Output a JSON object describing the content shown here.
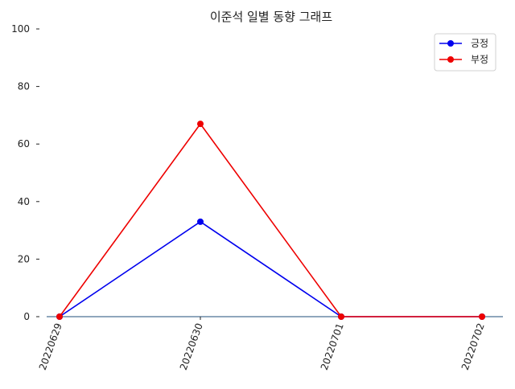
{
  "chart_data": {
    "type": "line",
    "title": "이준석 일별 동향 그래프",
    "xlabel": "",
    "ylabel": "",
    "categories": [
      "20220629",
      "20220630",
      "20220701",
      "20220702"
    ],
    "ylim": [
      0,
      100
    ],
    "yticks": [
      0,
      20,
      40,
      60,
      80,
      100
    ],
    "grid": false,
    "legend_position": "top-right",
    "series": [
      {
        "name": "긍정",
        "values": [
          0,
          33,
          0,
          0
        ],
        "color": "#0000ee"
      },
      {
        "name": "부정",
        "values": [
          0,
          67,
          0,
          0
        ],
        "color": "#ee0000"
      }
    ]
  }
}
